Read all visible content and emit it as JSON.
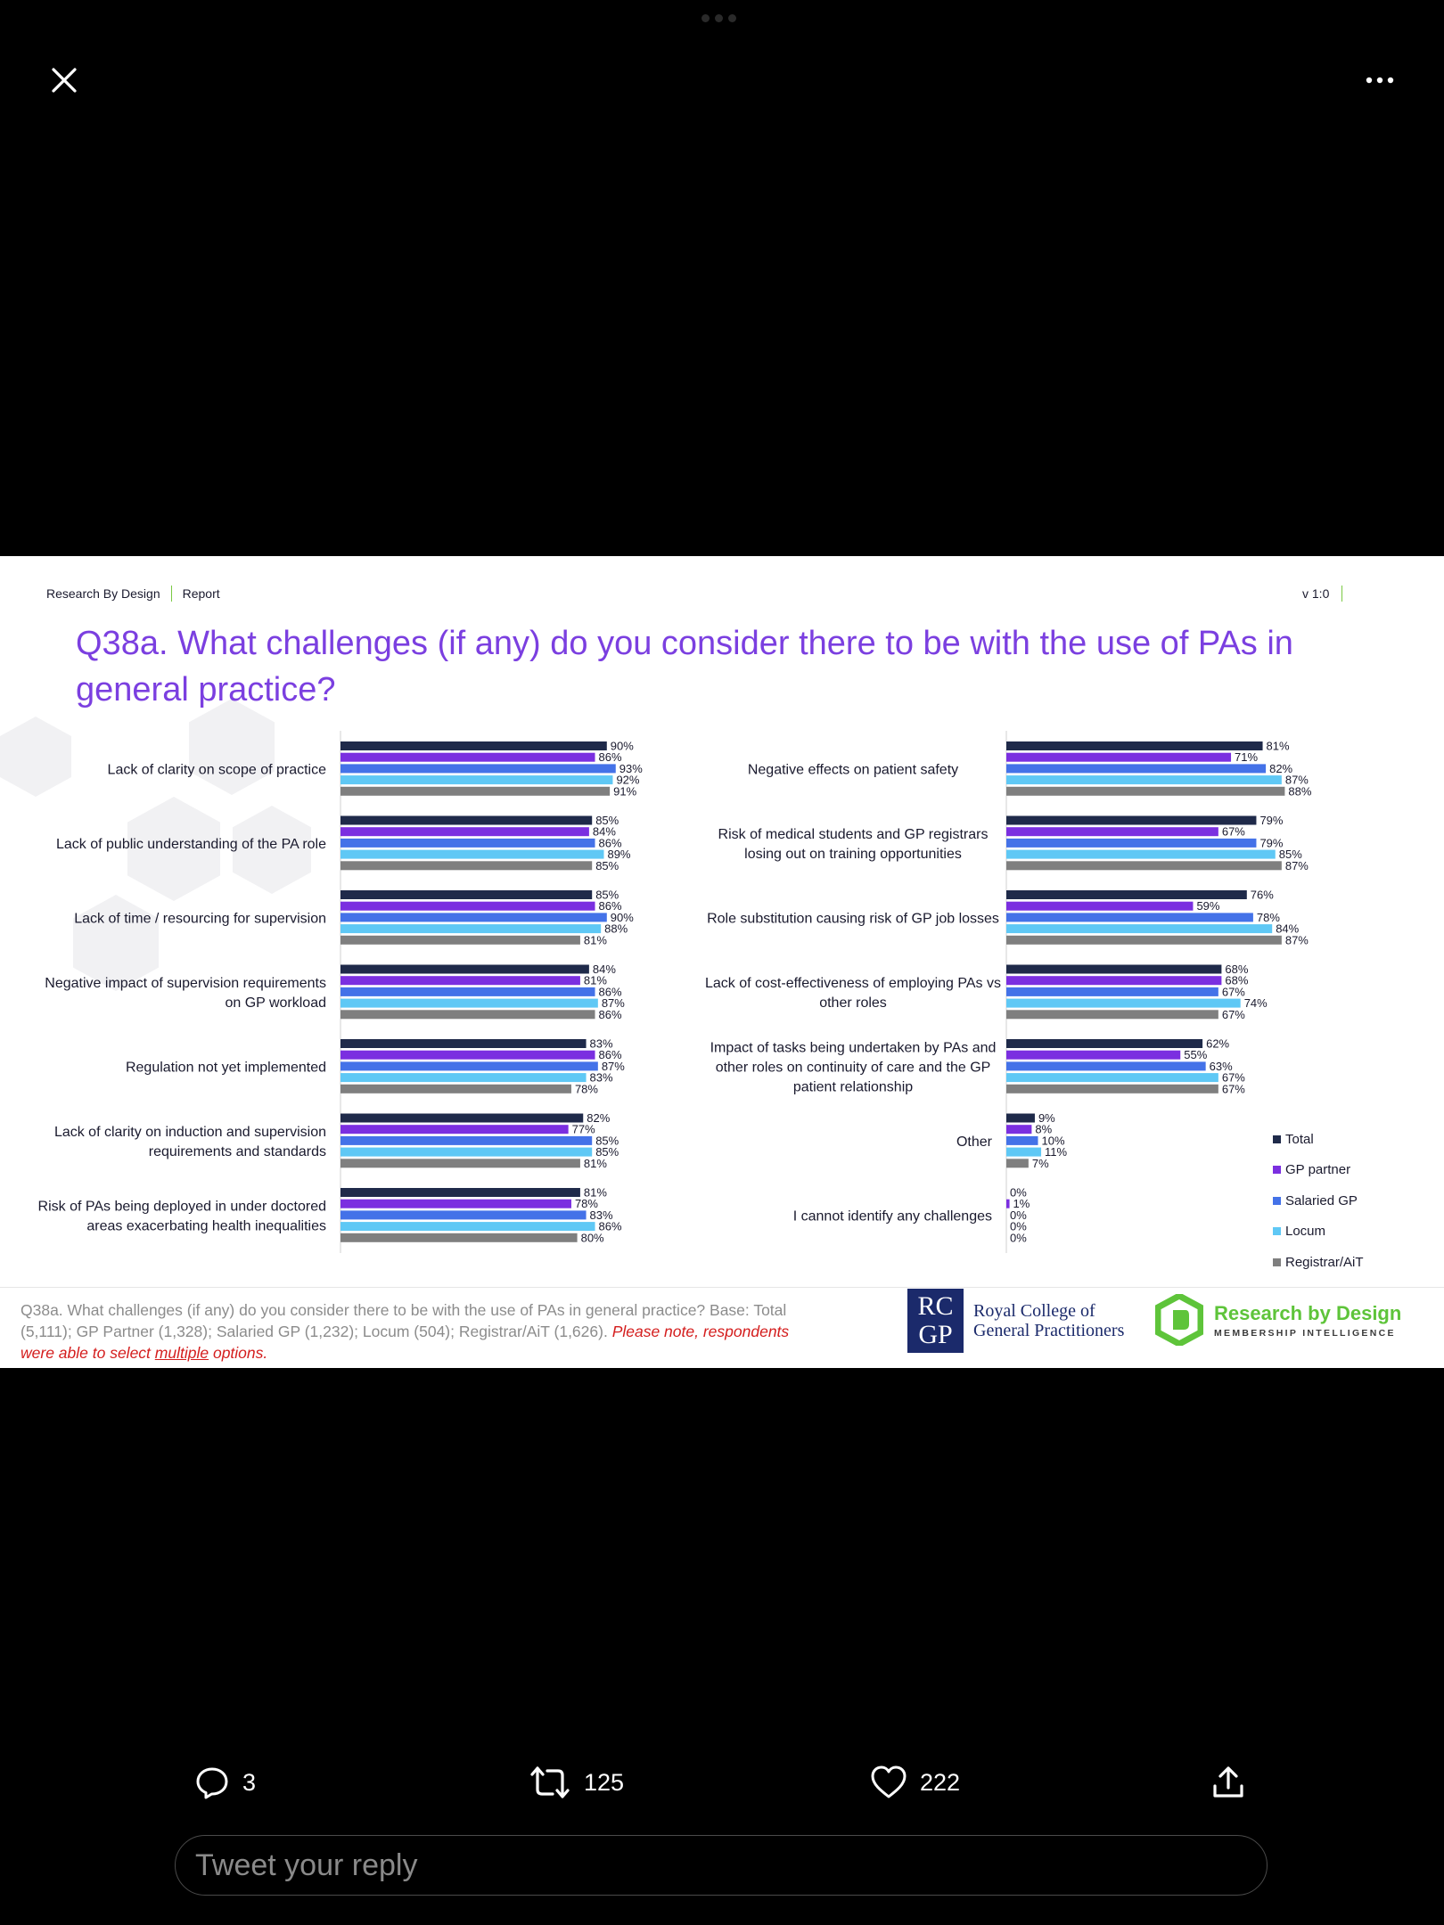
{
  "top_bar": {
    "close_icon": "close-icon",
    "more_icon": "more-options-icon"
  },
  "slide": {
    "header_left_1": "Research By Design",
    "header_left_2": "Report",
    "version": "v 1:0",
    "title_line1": "Q38a. What challenges (if any) do you consider there to be with the use of PAs in",
    "title_line2": "general practice?",
    "footnote_text": "Q38a. What challenges (if any) do you consider there to be with the use of PAs in general practice? Base: Total (5,111); GP Partner (1,328); Salaried GP (1,232); Locum (504); Registrar/AiT (1,626). ",
    "footnote_warn_1": "Please note, respondents were able to select ",
    "footnote_warn_u": "multiple",
    "footnote_warn_2": " options.",
    "rcgp_letters_1": "RC",
    "rcgp_letters_2": "GP",
    "rcgp_text_1": "Royal College of",
    "rcgp_text_2": "General Practitioners",
    "rbd_name": "Research by Design",
    "rbd_tag": "MEMBERSHIP INTELLIGENCE"
  },
  "chart_data": {
    "type": "bar",
    "orientation": "horizontal",
    "series_names": [
      "Total",
      "GP partner",
      "Salaried GP",
      "Locum",
      "Registrar/AiT"
    ],
    "colors": {
      "Total": "#1f2a4a",
      "GP partner": "#7b2fe0",
      "Salaried GP": "#4472e8",
      "Locum": "#5fc8f5",
      "Registrar/AiT": "#7f7f7f"
    },
    "legend_position": "bottom-right",
    "unit": "%",
    "panels": [
      {
        "categories": [
          "Lack of clarity on scope of practice",
          "Lack of public understanding of the PA role",
          "Lack of time / resourcing for supervision",
          "Negative impact of supervision requirements on GP workload",
          "Regulation not yet implemented",
          "Lack of clarity on induction and supervision requirements and standards",
          "Risk of PAs being deployed in under doctored areas exacerbating health inequalities"
        ],
        "label_lines": [
          [
            "Lack of clarity on scope of practice"
          ],
          [
            "Lack of public understanding of the PA role"
          ],
          [
            "Lack of time / resourcing for supervision"
          ],
          [
            "Negative impact of supervision requirements",
            "on GP workload"
          ],
          [
            "Regulation not yet implemented"
          ],
          [
            "Lack of clarity on induction and supervision",
            "requirements and standards"
          ],
          [
            "Risk of PAs being deployed in under doctored",
            "areas exacerbating health inequalities"
          ]
        ],
        "values": [
          [
            90,
            86,
            93,
            92,
            91
          ],
          [
            85,
            84,
            86,
            89,
            85
          ],
          [
            85,
            86,
            90,
            88,
            81
          ],
          [
            84,
            81,
            86,
            87,
            86
          ],
          [
            83,
            86,
            87,
            83,
            78
          ],
          [
            82,
            77,
            85,
            85,
            81
          ],
          [
            81,
            78,
            83,
            86,
            80
          ]
        ]
      },
      {
        "categories": [
          "Negative effects on patient safety",
          "Risk of medical students and GP registrars losing out on training opportunities",
          "Role substitution causing risk of GP job losses",
          "Lack of cost-effectiveness of employing PAs vs other roles",
          "Impact of tasks being undertaken by PAs and other roles on continuity of care and the GP patient relationship",
          "Other",
          "I cannot identify any challenges"
        ],
        "label_lines": [
          [
            "Negative effects on patient safety"
          ],
          [
            "Risk of medical students and GP registrars",
            "losing out on training opportunities"
          ],
          [
            "Role substitution causing risk of GP job losses"
          ],
          [
            "Lack of cost-effectiveness of employing PAs vs",
            "other roles"
          ],
          [
            "Impact of tasks being undertaken by PAs and",
            "other roles on continuity of care and the GP",
            "patient relationship"
          ],
          [
            "Other"
          ],
          [
            "I cannot identify any challenges"
          ]
        ],
        "values": [
          [
            81,
            71,
            82,
            87,
            88
          ],
          [
            79,
            67,
            79,
            85,
            87
          ],
          [
            76,
            59,
            78,
            84,
            87
          ],
          [
            68,
            68,
            67,
            74,
            67
          ],
          [
            62,
            55,
            63,
            67,
            67
          ],
          [
            9,
            8,
            10,
            11,
            7
          ],
          [
            0,
            1,
            0,
            0,
            0
          ]
        ]
      }
    ]
  },
  "tweet_actions": {
    "reply_icon": "reply-icon",
    "reply_count": "3",
    "retweet_icon": "retweet-icon",
    "retweet_count": "125",
    "like_icon": "heart-icon",
    "like_count": "222",
    "share_icon": "share-icon"
  },
  "reply_box": {
    "placeholder": "Tweet your reply"
  }
}
